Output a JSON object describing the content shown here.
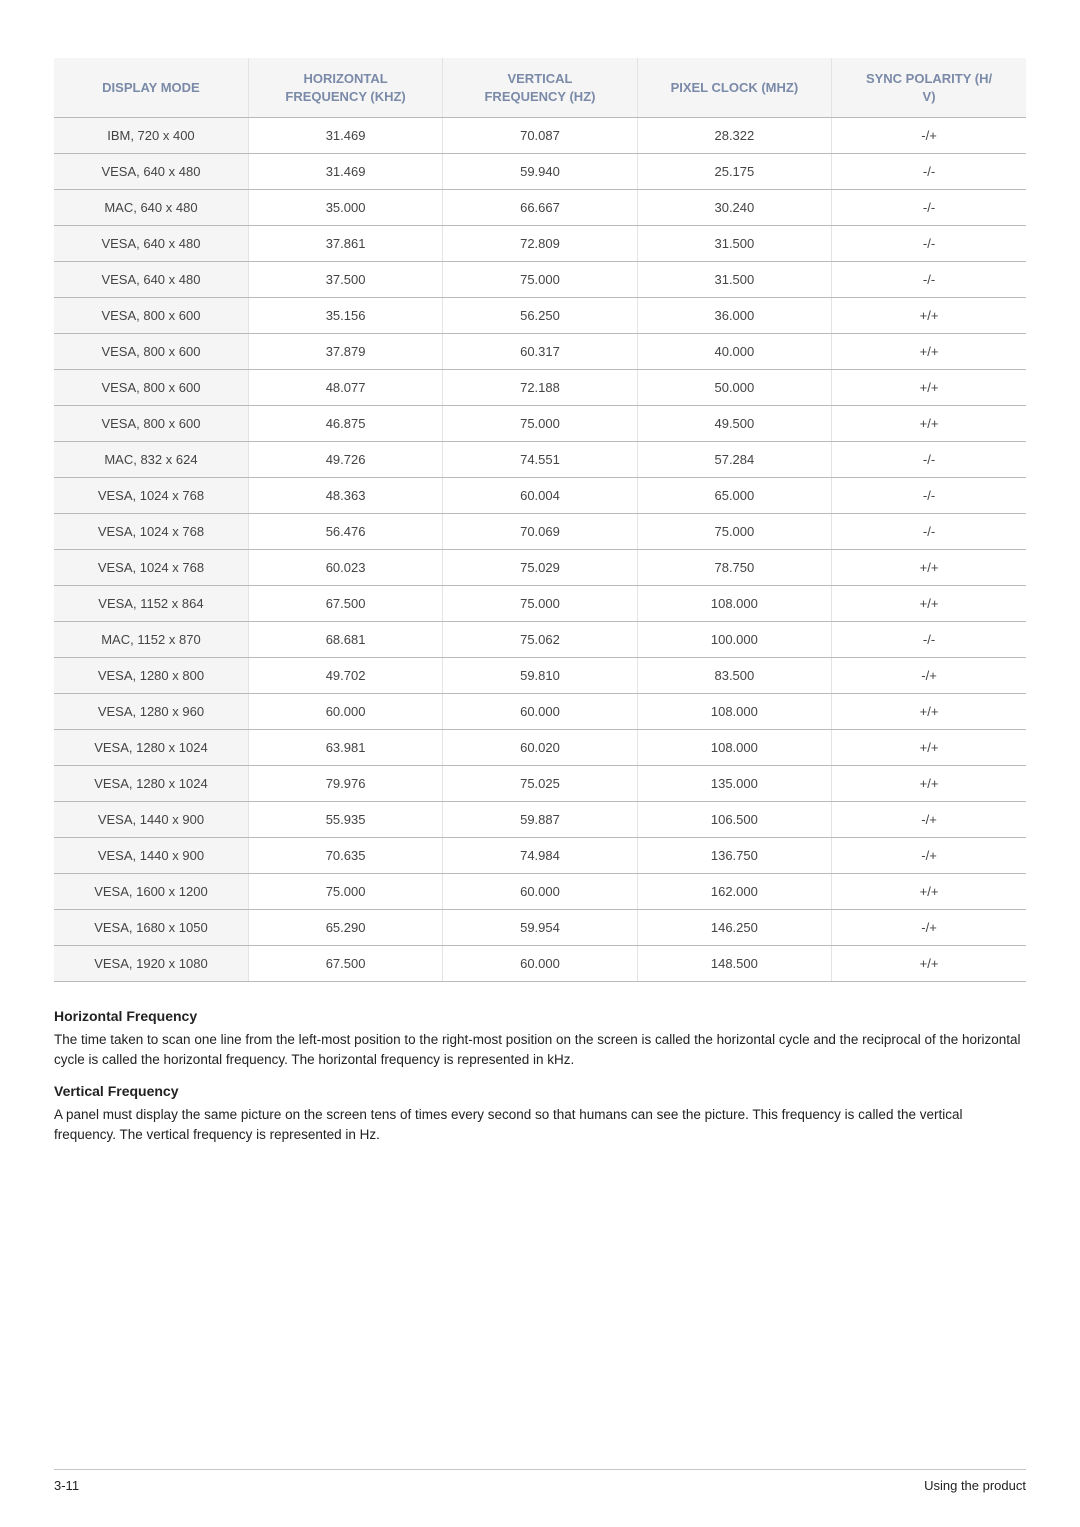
{
  "table": {
    "columns": [
      "DISPLAY MODE",
      "HORIZONTAL FREQUENCY (KHZ)",
      "VERTICAL FREQUENCY (HZ)",
      "PIXEL CLOCK (MHZ)",
      "SYNC POLARITY (H/V)"
    ],
    "rows": [
      [
        "IBM, 720 x 400",
        "31.469",
        "70.087",
        "28.322",
        "-/+"
      ],
      [
        "VESA, 640 x 480",
        "31.469",
        "59.940",
        "25.175",
        "-/-"
      ],
      [
        "MAC, 640 x 480",
        "35.000",
        "66.667",
        "30.240",
        "-/-"
      ],
      [
        "VESA, 640 x 480",
        "37.861",
        "72.809",
        "31.500",
        "-/-"
      ],
      [
        "VESA, 640 x 480",
        "37.500",
        "75.000",
        "31.500",
        "-/-"
      ],
      [
        "VESA, 800 x 600",
        "35.156",
        "56.250",
        "36.000",
        "+/+"
      ],
      [
        "VESA, 800 x 600",
        "37.879",
        "60.317",
        "40.000",
        "+/+"
      ],
      [
        "VESA, 800 x 600",
        "48.077",
        "72.188",
        "50.000",
        "+/+"
      ],
      [
        "VESA, 800 x 600",
        "46.875",
        "75.000",
        "49.500",
        "+/+"
      ],
      [
        "MAC, 832 x 624",
        "49.726",
        "74.551",
        "57.284",
        "-/-"
      ],
      [
        "VESA, 1024 x 768",
        "48.363",
        "60.004",
        "65.000",
        "-/-"
      ],
      [
        "VESA, 1024 x 768",
        "56.476",
        "70.069",
        "75.000",
        "-/-"
      ],
      [
        "VESA, 1024 x 768",
        "60.023",
        "75.029",
        "78.750",
        "+/+"
      ],
      [
        "VESA, 1152 x 864",
        "67.500",
        "75.000",
        "108.000",
        "+/+"
      ],
      [
        "MAC, 1152 x 870",
        "68.681",
        "75.062",
        "100.000",
        "-/-"
      ],
      [
        "VESA, 1280 x 800",
        "49.702",
        "59.810",
        "83.500",
        "-/+"
      ],
      [
        "VESA, 1280 x 960",
        "60.000",
        "60.000",
        "108.000",
        "+/+"
      ],
      [
        "VESA, 1280 x 1024",
        "63.981",
        "60.020",
        "108.000",
        "+/+"
      ],
      [
        "VESA, 1280 x 1024",
        "79.976",
        "75.025",
        "135.000",
        "+/+"
      ],
      [
        "VESA, 1440 x 900",
        "55.935",
        "59.887",
        "106.500",
        "-/+"
      ],
      [
        "VESA, 1440 x 900",
        "70.635",
        "74.984",
        "136.750",
        "-/+"
      ],
      [
        "VESA, 1600 x 1200",
        "75.000",
        "60.000",
        "162.000",
        "+/+"
      ],
      [
        "VESA, 1680 x 1050",
        "65.290",
        "59.954",
        "146.250",
        "-/+"
      ],
      [
        "VESA, 1920 x 1080",
        "67.500",
        "60.000",
        "148.500",
        "+/+"
      ]
    ],
    "header_bg": "#f5f5f5",
    "header_color": "#7a8aa8",
    "border_color": "#b9b9b9",
    "cell_font_size": 13
  },
  "notes": {
    "h1_title": "Horizontal Frequency",
    "h1_body": "The time taken to scan one line from the left-most position to the right-most position on the screen is called the horizontal cycle and the reciprocal of the horizontal cycle is called the horizontal frequency. The horizontal frequency is represented in kHz.",
    "v1_title": "Vertical Frequency",
    "v1_body": "A panel must display the same picture on the screen tens of times every second so that humans can see the picture. This frequency is called the vertical frequency. The vertical frequency is represented in Hz."
  },
  "footer": {
    "left": "3-11",
    "right": "Using the product"
  }
}
